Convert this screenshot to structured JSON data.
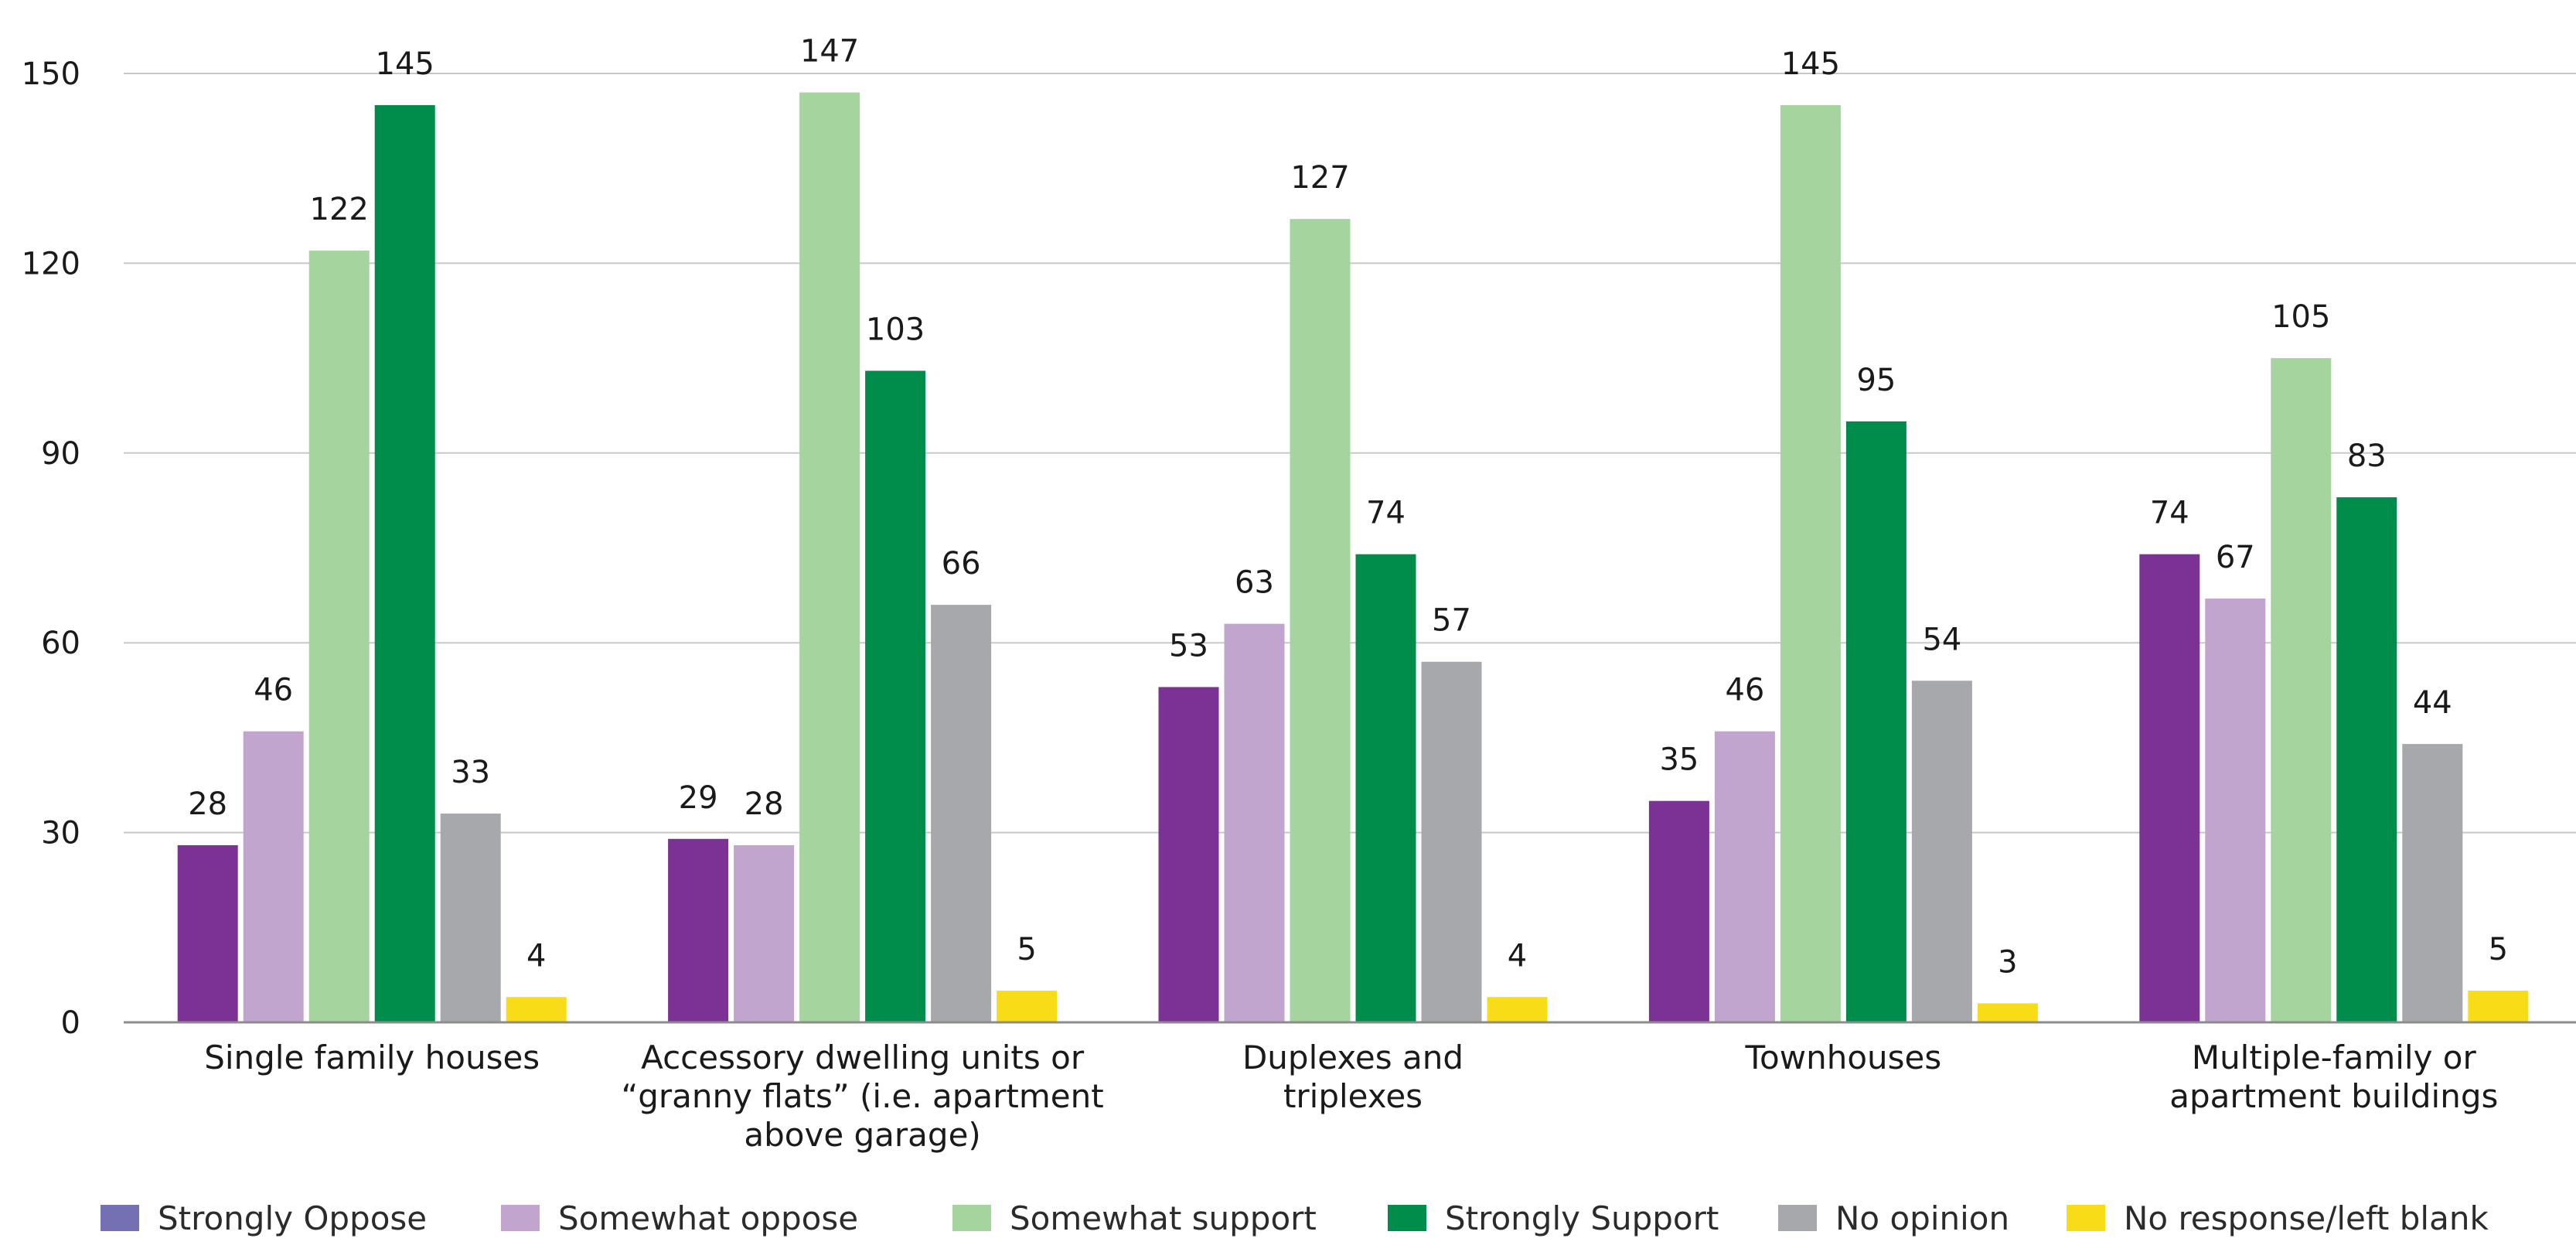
{
  "chart_data": {
    "type": "bar",
    "title": "",
    "xlabel": "",
    "ylabel": "",
    "ylim": [
      0,
      150
    ],
    "yticks": [
      0,
      30,
      60,
      90,
      120,
      150
    ],
    "grid": true,
    "legend_position": "bottom",
    "categories": [
      [
        "Single family houses"
      ],
      [
        "Accessory dwelling units or",
        "“granny flats” (i.e. apartment",
        "above garage)"
      ],
      [
        "Duplexes and",
        "triplexes"
      ],
      [
        "Townhouses"
      ],
      [
        "Multiple-family or",
        "apartment buildings"
      ]
    ],
    "series": [
      {
        "name": "Strongly Oppose",
        "color": "#7b3294",
        "legend_color": "#7570b3",
        "values": [
          28,
          29,
          53,
          35,
          74
        ]
      },
      {
        "name": "Somewhat oppose",
        "color": "#c2a5cf",
        "values": [
          46,
          28,
          63,
          46,
          67
        ]
      },
      {
        "name": "Somewhat support",
        "color": "#a6d49f",
        "values": [
          122,
          147,
          127,
          145,
          105
        ]
      },
      {
        "name": "Strongly Support",
        "color": "#008c4a",
        "values": [
          145,
          103,
          74,
          95,
          83
        ]
      },
      {
        "name": "No opinion",
        "color": "#a7a8ab",
        "values": [
          33,
          66,
          57,
          54,
          44
        ]
      },
      {
        "name": "No response/left blank",
        "color": "#f7dc17",
        "values": [
          4,
          5,
          4,
          3,
          5
        ]
      }
    ],
    "colors": {
      "grid": "#c8c8c8",
      "axis": "#8c8c8c"
    }
  }
}
